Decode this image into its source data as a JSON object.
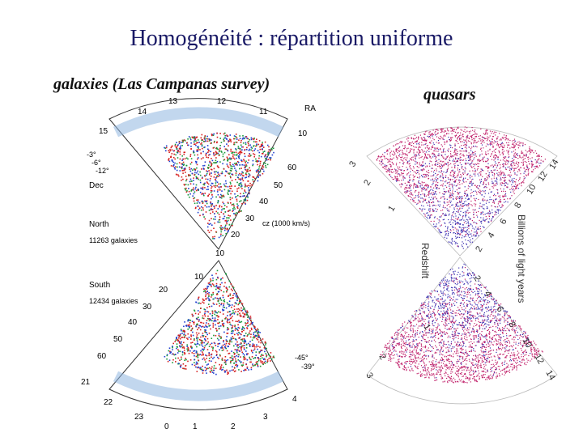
{
  "slide": {
    "title": "Homogénéité : répartition uniforme",
    "left_caption": "galaxies (Las Campanas survey)",
    "right_caption": "quasars"
  },
  "galaxy_map": {
    "ra_hours_top": [
      "14",
      "13",
      "12",
      "11",
      "10"
    ],
    "ra_hours_side_top": [
      "15"
    ],
    "ra_hours_bottom": [
      "21",
      "22",
      "23",
      "0",
      "1",
      "2",
      "3",
      "4"
    ],
    "ra_label": "RA",
    "dec_label": "Dec",
    "dec_top": [
      "-3°",
      "-6°",
      "-12°"
    ],
    "dec_bottom": [
      "-45°",
      "-39°"
    ],
    "cz_label": "cz (1000 km/s)",
    "north_label": "North",
    "north_count": "11263 galaxies",
    "south_label": "South",
    "south_count": "12434 galaxies",
    "north_ticks": [
      "60",
      "50",
      "40",
      "30",
      "20",
      "10"
    ],
    "south_ticks": [
      "10",
      "20",
      "30",
      "40",
      "50",
      "60"
    ],
    "colors": {
      "red": "#d62020",
      "green": "#1a9a3a",
      "blue": "#1f3fd0",
      "band_green": "#58c080",
      "band_blue": "#8fb6e0"
    }
  },
  "quasar_map": {
    "axis_label": "Billions of light years",
    "redshift_label": "Redshift",
    "top_redshift": [
      "3",
      "2",
      "1"
    ],
    "top_distance": [
      "14",
      "12",
      "10",
      "8",
      "6",
      "4",
      "2"
    ],
    "bottom_redshift": [
      "1",
      "2",
      "3"
    ],
    "bottom_distance": [
      "2",
      "4",
      "6",
      "8",
      "10",
      "12",
      "14"
    ],
    "colors": {
      "outer": "#c0206a",
      "inner": "#3a2fb0"
    }
  }
}
